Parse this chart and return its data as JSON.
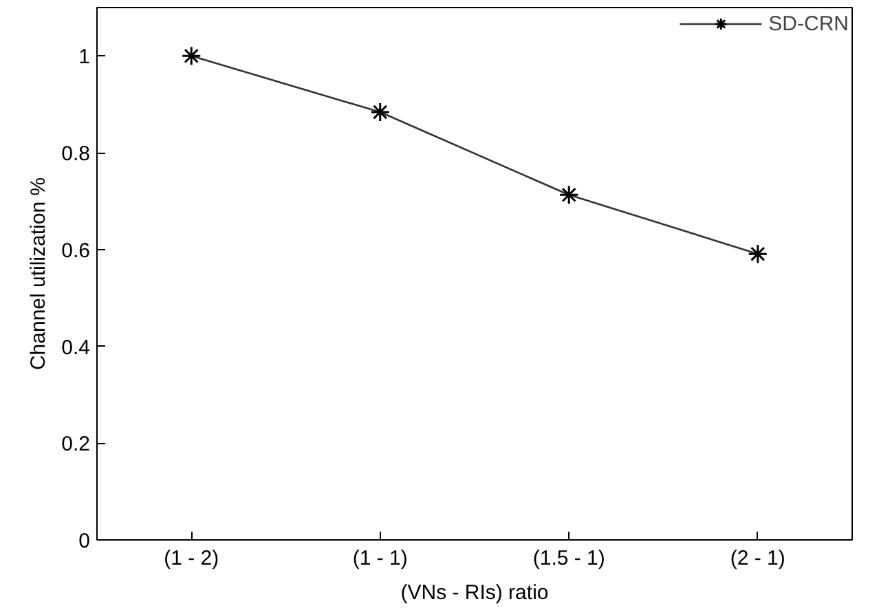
{
  "chart_data": {
    "type": "line",
    "xlabel": "(VNs - RIs) ratio",
    "ylabel": "Channel utilization %",
    "categories": [
      "(1 - 2)",
      "(1 - 1)",
      "(1.5 - 1)",
      "(2 - 1)"
    ],
    "series": [
      {
        "name": "SD-CRN",
        "color": "#333333",
        "values": [
          1.0,
          0.884,
          0.713,
          0.591
        ]
      }
    ],
    "ylim": [
      0,
      1.1
    ],
    "yticks": [
      0,
      0.2,
      0.4,
      0.6,
      0.8,
      1
    ],
    "grid": false,
    "legend": "top right",
    "marker": "cross",
    "line_style": "solid"
  }
}
